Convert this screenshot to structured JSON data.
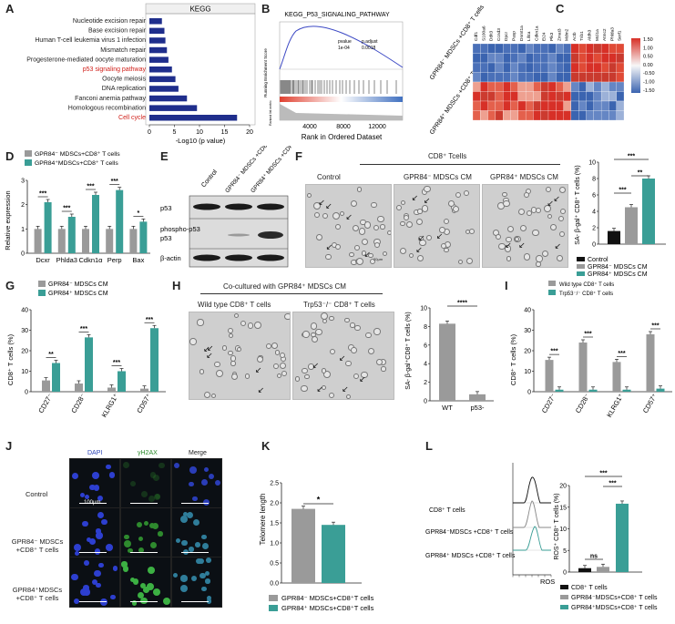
{
  "panels": {
    "A": {
      "label": "A",
      "title": "KEGG",
      "xlabel": "-Log10 (p value)"
    },
    "B": {
      "label": "B",
      "title": "KEGG_P53_SIGNALING_PATHWAY",
      "ylabel": "Running Enrichment Score",
      "ylabel2": "Ranked list metric",
      "xlabel": "Rank in Ordered Dataset",
      "pvalue_head": "pvalue",
      "padj_head": "p.adjust",
      "pvalue": "1e-04",
      "padj": "0.0018",
      "xticks": [
        "4000",
        "8000",
        "12000"
      ]
    },
    "C": {
      "label": "C",
      "row_group1": "GPR84⁻ MDSCs +CD8⁺ T cells",
      "row_group2": "GPR84⁺ MDSCs +CD8⁺ T cells",
      "genes": [
        "Cdf1",
        "S100a6",
        "Ddit3",
        "Ccnd3",
        "Dpcr",
        "Pasp",
        "Dnmt1a",
        "Lif4a",
        "Cdkn1a",
        "Ei24",
        "Plk3",
        "Zmat3",
        "Mdm2",
        "Actb",
        "Trib1",
        "Aldh3",
        "Mcl1a",
        "Atmc2",
        "Phlda3",
        "Serf1"
      ],
      "legend": [
        "1.50",
        "1.00",
        "0.50",
        "0.00",
        "-0.50",
        "-1.00",
        "-1.50"
      ]
    },
    "D": {
      "label": "D",
      "legend1": "GPR84⁻ MDSCs+CD8⁺ T cells",
      "legend2": "GPR84⁺MDSCs+CD8⁺ T cells",
      "ylabel": "Relative expression",
      "yticks": [
        "0",
        "1",
        "2",
        "3"
      ],
      "categories": [
        "Dcxr",
        "Phlda3",
        "Cdkn1α",
        "Perp",
        "Bax"
      ],
      "sig": [
        "***",
        "***",
        "***",
        "***",
        "*"
      ]
    },
    "E": {
      "label": "E",
      "cols": [
        "Control",
        "GPR84⁻ MDSCs +CD8⁺ T cells",
        "GPR84⁺ MDSCs +CD8⁺ T cells"
      ],
      "rows": [
        "p53",
        "phospho-p53",
        "β-actin"
      ]
    },
    "F": {
      "label": "F",
      "group": "CD8⁺ Tcells",
      "cols": [
        "Control",
        "GPR84⁻ MDSCs CM",
        "GPR84⁺ MDSCs CM"
      ],
      "scale": "20μm",
      "ylabel": "SA- β-gal⁺ CD8⁺ T cells (%)",
      "yticks": [
        "0",
        "2",
        "4",
        "6",
        "8",
        "10"
      ],
      "legend": [
        "Control",
        "GPR84⁻ MDSCs CM",
        "GPR84⁺ MDSCs CM"
      ],
      "sig": [
        "***",
        "***",
        "**"
      ]
    },
    "G": {
      "label": "G",
      "legend1": "GPR84⁻ MDSCs CM",
      "legend2": "GPR84⁺ MDSCs CM",
      "ylabel": "CD8⁺ T cells (%)",
      "yticks": [
        "0",
        "10",
        "20",
        "30",
        "40"
      ],
      "categories": [
        "CD27⁻",
        "CD28⁻",
        "KLRG1⁺",
        "CD57⁺"
      ],
      "sig": [
        "**",
        "***",
        "***",
        "***"
      ]
    },
    "H": {
      "label": "H",
      "title": "Co-cultured with GPR84⁺ MDSCs CM",
      "cols": [
        "Wild type CD8⁺ T cells",
        "Trp53⁻/⁻ CD8⁺ T cells"
      ],
      "ylabel": "SA- β-gal⁺CD8⁺ T cells (%)",
      "yticks": [
        "0",
        "2",
        "4",
        "6",
        "8",
        "10"
      ],
      "categories": [
        "WT",
        "p53-"
      ],
      "sig": "****"
    },
    "I": {
      "label": "I",
      "legend1": "Wild type CD8⁺ T cells",
      "legend2": "Trp53⁻/⁻ CD8⁺ T cells",
      "ylabel": "CD8⁺ T cells (%)",
      "yticks": [
        "0",
        "10",
        "20",
        "30",
        "40"
      ],
      "categories": [
        "CD27⁻",
        "CD28⁻",
        "KLRG1⁺",
        "CD57⁺"
      ],
      "sig": [
        "***",
        "***",
        "***",
        "***"
      ]
    },
    "J": {
      "label": "J",
      "cols": [
        "DAPI",
        "γH2AX",
        "Merge"
      ],
      "rows": [
        "Control",
        "GPR84⁻ MDSCs +CD8⁺ T cells",
        "GPR84⁺MDSCs +CD8⁺ T cells"
      ],
      "scale": "100μm"
    },
    "K": {
      "label": "K",
      "ylabel": "Telomere length",
      "yticks": [
        "0.0",
        "0.5",
        "1.0",
        "1.5",
        "2.0",
        "2.5"
      ],
      "sig": "*",
      "legend1": "GPR84⁻ MDSCs+CD8⁺T cells",
      "legend2": "GPR84⁺ MDSCs+CD8⁺T cells"
    },
    "L": {
      "label": "L",
      "rows": [
        "CD8⁺ T cells",
        "GPR84⁻MDSCs +CD8⁺ T cells",
        "GPR84⁺ MDSCs +CD8⁺ T cells"
      ],
      "xlabel": "ROS",
      "ylabel": "ROS⁺ CD8⁺ T cells (%)",
      "yticks": [
        "0",
        "5",
        "10",
        "15",
        "20"
      ],
      "sig": [
        "ns",
        "***",
        "***"
      ],
      "legend": [
        "CD8⁺ T cells",
        "GPR84⁻MDSCs+CD8⁺ T cells",
        "GPR84⁺MDSCs+CD8⁺ T cells"
      ]
    }
  },
  "chart_data": [
    {
      "id": "A",
      "type": "bar",
      "orientation": "horizontal",
      "categories": [
        "Nucleotide excision repair",
        "Base excision repair",
        "Human T-cell leukemia virus 1 infection",
        "Mismatch repair",
        "Progesterone-mediated oocyte maturation",
        "p53 signaling pathway",
        "Oocyte meiosis",
        "DNA replication",
        "Fanconi anemia pathway",
        "Homologous recombination",
        "Cell cycle"
      ],
      "highlighted": [
        "p53 signaling pathway",
        "Cell cycle"
      ],
      "values": [
        2.5,
        3.0,
        3.2,
        3.5,
        3.8,
        4.5,
        5.2,
        5.8,
        7.5,
        9.5,
        17.5
      ],
      "xlim": [
        0,
        20
      ],
      "xticks": [
        "0",
        "5",
        "10",
        "15",
        "20"
      ]
    },
    {
      "id": "D",
      "type": "bar",
      "series": [
        {
          "name": "GPR84- MDSCs+CD8+ T cells",
          "values": [
            1.0,
            1.0,
            1.0,
            1.0,
            1.0
          ]
        },
        {
          "name": "GPR84+ MDSCs+CD8+ T cells",
          "values": [
            2.1,
            1.5,
            2.4,
            2.6,
            1.3
          ]
        }
      ],
      "ylim": [
        0,
        3
      ]
    },
    {
      "id": "F",
      "type": "bar",
      "categories": [
        "Control",
        "GPR84- MDSCs CM",
        "GPR84+ MDSCs CM"
      ],
      "values": [
        1.6,
        4.5,
        8.0
      ],
      "ylim": [
        0,
        10
      ]
    },
    {
      "id": "G",
      "type": "bar",
      "series": [
        {
          "name": "GPR84- MDSCs CM",
          "values": [
            5.5,
            4.0,
            2.0,
            1.5
          ]
        },
        {
          "name": "GPR84+ MDSCs CM",
          "values": [
            14.0,
            26.5,
            10.0,
            31.0
          ]
        }
      ],
      "ylim": [
        0,
        40
      ]
    },
    {
      "id": "H",
      "type": "bar",
      "categories": [
        "WT",
        "p53-"
      ],
      "values": [
        8.3,
        0.7
      ],
      "ylim": [
        0,
        10
      ]
    },
    {
      "id": "I",
      "type": "bar",
      "series": [
        {
          "name": "Wild type CD8+ T cells",
          "values": [
            15.5,
            24.0,
            14.5,
            28.0
          ]
        },
        {
          "name": "Trp53-/- CD8+ T cells",
          "values": [
            1.0,
            1.0,
            1.0,
            1.5
          ]
        }
      ],
      "ylim": [
        0,
        40
      ]
    },
    {
      "id": "K",
      "type": "bar",
      "categories": [
        "GPR84- MDSCs+CD8+T cells",
        "GPR84+ MDSCs+CD8+T cells"
      ],
      "values": [
        1.85,
        1.45
      ],
      "ylim": [
        0,
        2.5
      ]
    },
    {
      "id": "L",
      "type": "bar",
      "categories": [
        "CD8+ T cells",
        "GPR84-MDSCs+CD8+ T cells",
        "GPR84+MDSCs+CD8+ T cells"
      ],
      "values": [
        0.9,
        1.2,
        15.8
      ],
      "ylim": [
        0,
        20
      ]
    }
  ],
  "colors": {
    "grey": "#9a9a9a",
    "teal": "#3a9e96",
    "dark": "#111111",
    "navy": "#1f2e8c",
    "red": "#d0201a"
  }
}
